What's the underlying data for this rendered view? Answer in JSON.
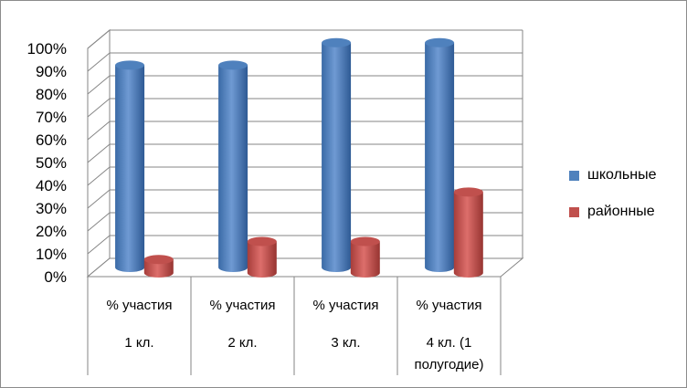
{
  "chart_data": {
    "type": "bar",
    "categories": [
      [
        "% участия",
        "1 кл."
      ],
      [
        "% участия",
        "2 кл."
      ],
      [
        "% участия",
        "3 кл."
      ],
      [
        "% участия",
        "4 кл. (1",
        "полугодие)"
      ]
    ],
    "series": [
      {
        "name": "школьные",
        "values": [
          90,
          90,
          100,
          100
        ],
        "color": "#4f81bd"
      },
      {
        "name": "районные",
        "values": [
          6,
          14,
          14,
          36
        ],
        "color": "#c0504d"
      }
    ],
    "ylim": [
      0,
      100
    ],
    "yticks": [
      "0%",
      "10%",
      "20%",
      "30%",
      "40%",
      "50%",
      "60%",
      "70%",
      "80%",
      "90%",
      "100%"
    ],
    "grid": true,
    "legend_position": "right",
    "three_d": true
  }
}
